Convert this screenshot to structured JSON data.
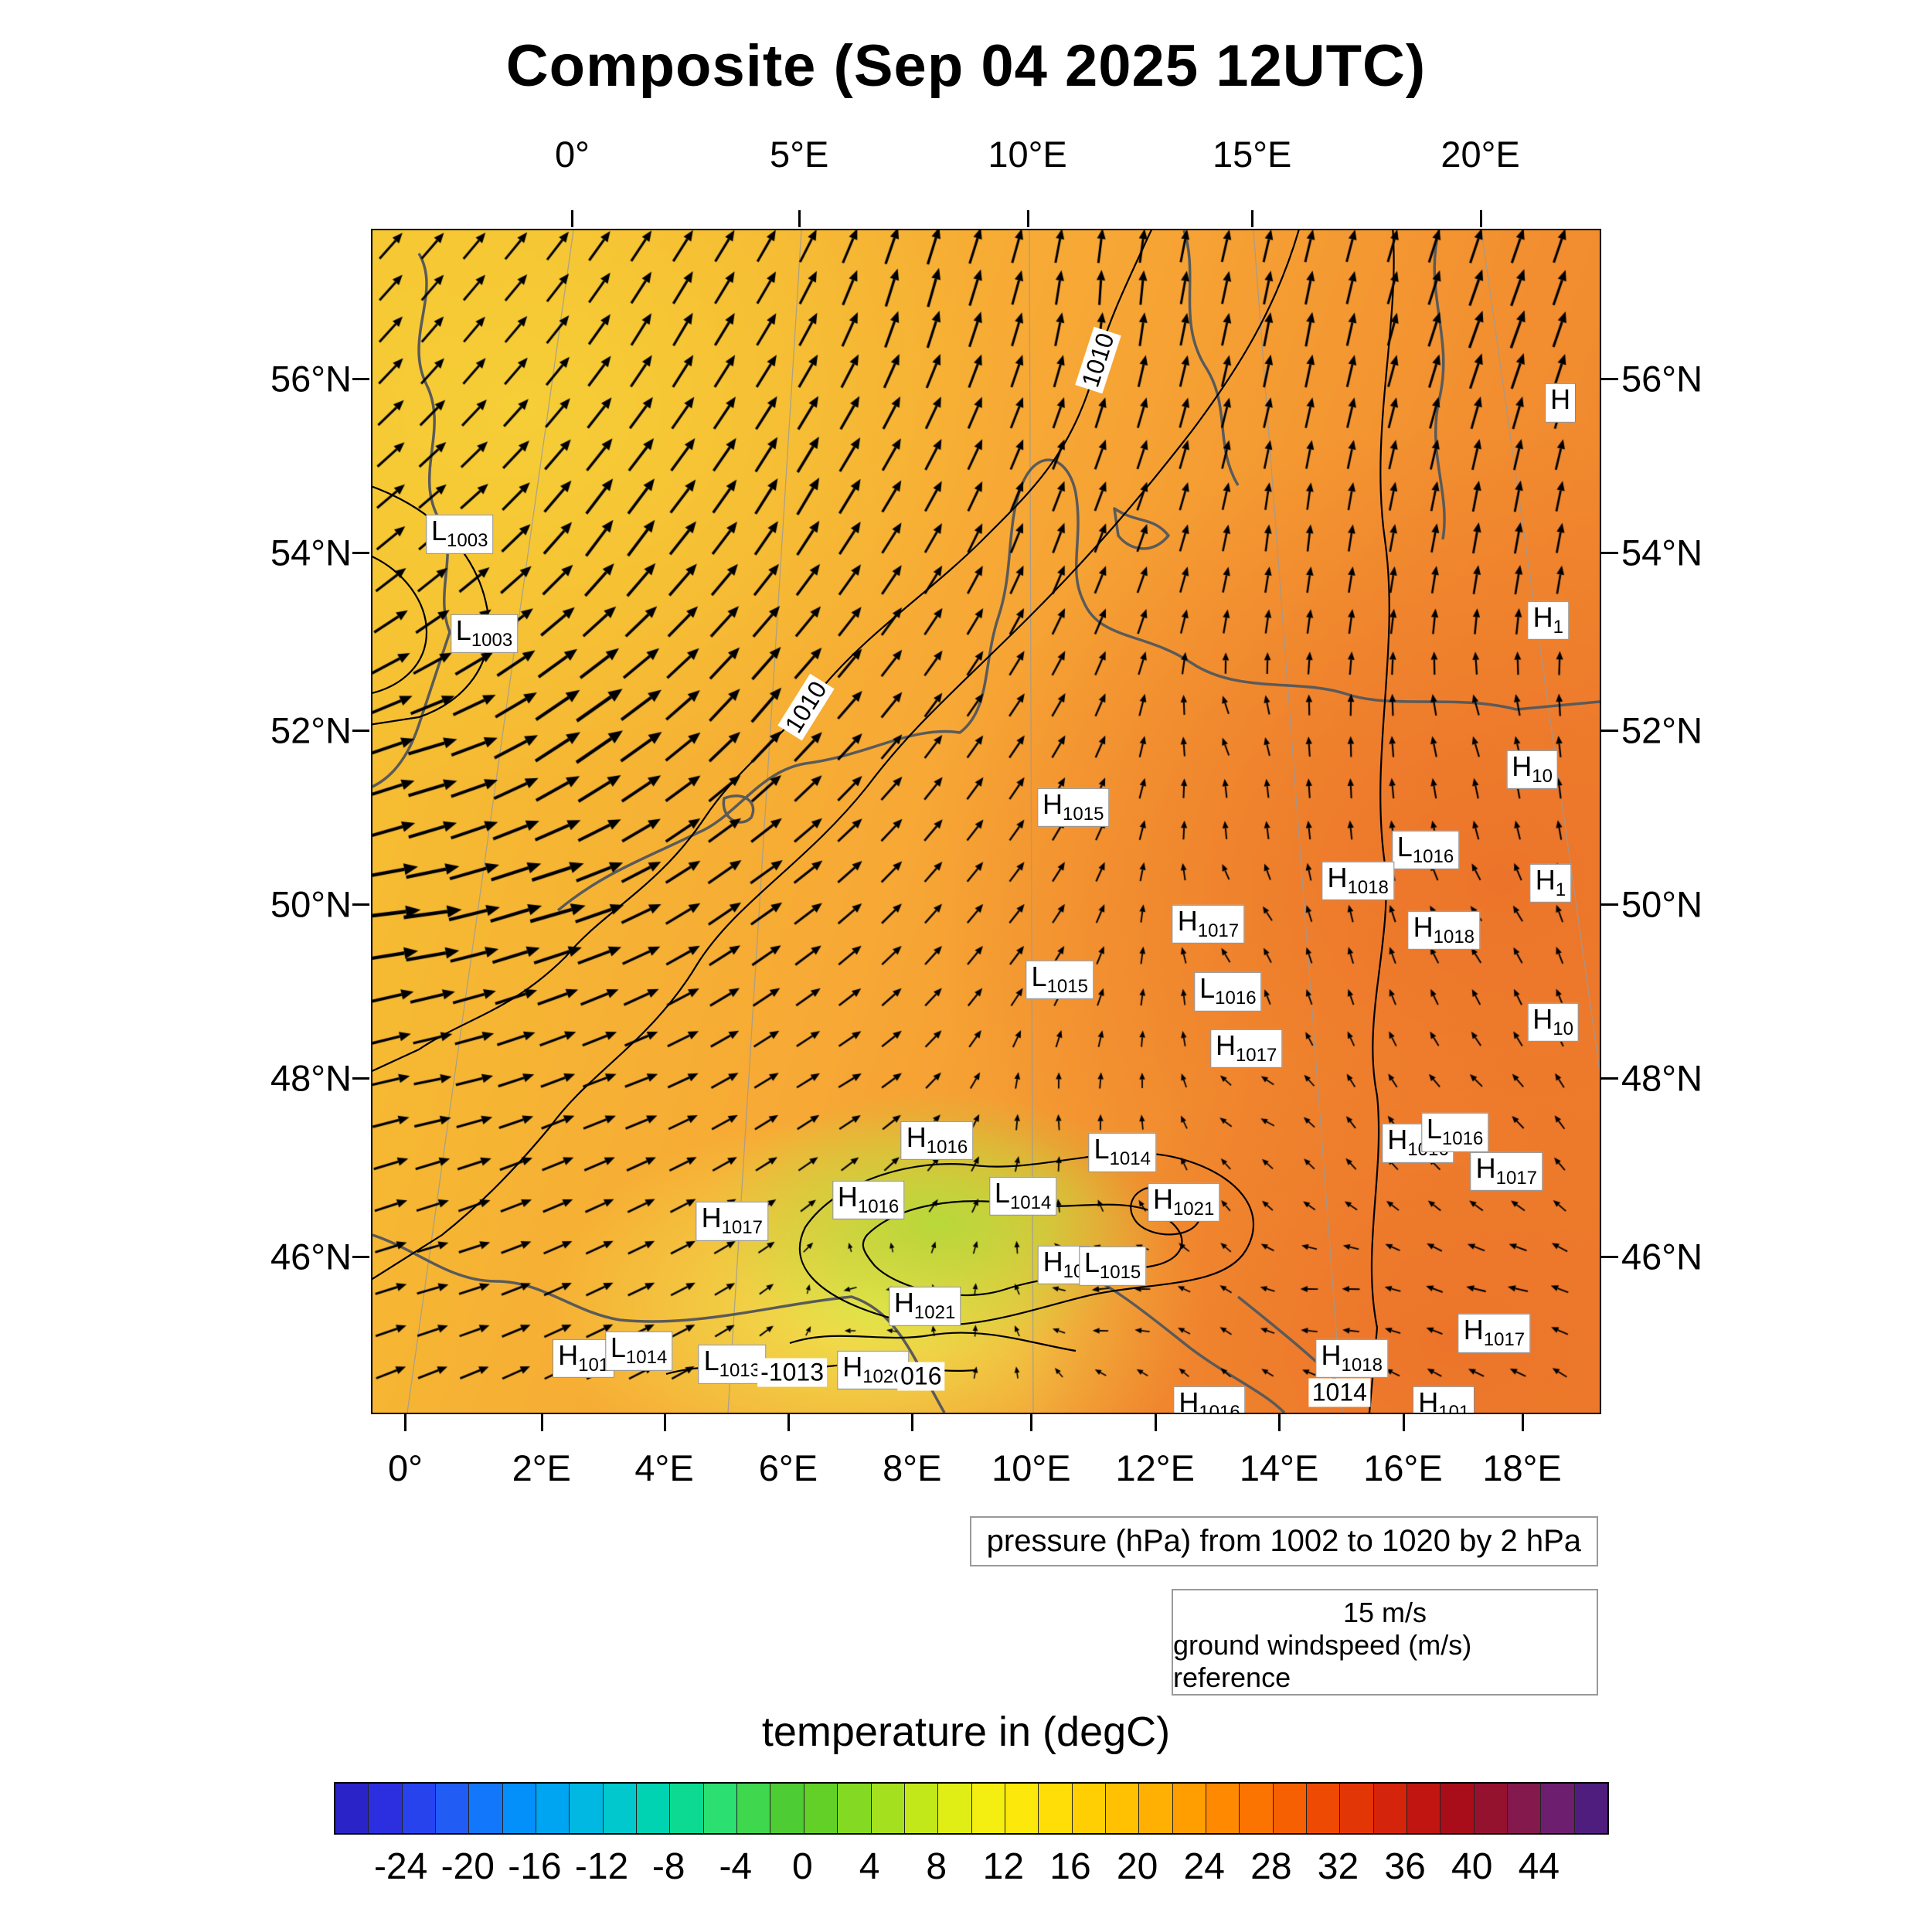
{
  "title": "Composite (Sep 04 2025 12UTC)",
  "captions": {
    "pressure": "pressure (hPa) from 1002 to 1020 by 2 hPa",
    "wind_ref_speed": "15 m/s",
    "wind_ref_label": "ground windspeed (m/s) reference",
    "colorbar_title": "temperature in (degC)"
  },
  "axes": {
    "top": [
      {
        "label": "0°",
        "x": 16.4
      },
      {
        "label": "5°E",
        "x": 34.9
      },
      {
        "label": "10°E",
        "x": 53.5
      },
      {
        "label": "15°E",
        "x": 71.8
      },
      {
        "label": "20°E",
        "x": 90.4
      }
    ],
    "bottom": [
      {
        "label": "0°",
        "x": 2.8
      },
      {
        "label": "2°E",
        "x": 13.9
      },
      {
        "label": "4°E",
        "x": 23.9
      },
      {
        "label": "6°E",
        "x": 34.0
      },
      {
        "label": "8°E",
        "x": 44.1
      },
      {
        "label": "10°E",
        "x": 53.8
      },
      {
        "label": "12°E",
        "x": 63.9
      },
      {
        "label": "14°E",
        "x": 74.0
      },
      {
        "label": "16°E",
        "x": 84.1
      },
      {
        "label": "18°E",
        "x": 93.8
      }
    ],
    "left": [
      {
        "label": "56°N",
        "y": 12.7
      },
      {
        "label": "54°N",
        "y": 27.4
      },
      {
        "label": "52°N",
        "y": 42.4
      },
      {
        "label": "50°N",
        "y": 57.1
      },
      {
        "label": "48°N",
        "y": 71.8
      },
      {
        "label": "46°N",
        "y": 86.9
      }
    ],
    "right": [
      {
        "label": "56°N",
        "y": 12.7
      },
      {
        "label": "54°N",
        "y": 27.4
      },
      {
        "label": "52°N",
        "y": 42.4
      },
      {
        "label": "50°N",
        "y": 57.1
      },
      {
        "label": "48°N",
        "y": 71.8
      },
      {
        "label": "46°N",
        "y": 86.9
      }
    ]
  },
  "colors": {
    "yellow": "#f6ce36",
    "yellow2": "#f5c431",
    "mid": "#f7a835",
    "orange": "#f28f30",
    "deep": "#ec742a",
    "deep2": "#ee7e2c",
    "green": "#b8d83a",
    "pale": "#eee84e",
    "coast": "#5a5a5a",
    "isobar": "#000000",
    "graticule": "#9a9a9a",
    "arrow": "#000000"
  },
  "colorbar": {
    "min": -28,
    "max": 48,
    "cell_step": 2,
    "tick_labels": [
      "-24",
      "-20",
      "-16",
      "-12",
      "-8",
      "-4",
      "0",
      "4",
      "8",
      "12",
      "16",
      "20",
      "24",
      "28",
      "32",
      "36",
      "40",
      "44"
    ],
    "tick_values": [
      -24,
      -20,
      -16,
      -12,
      -8,
      -4,
      0,
      4,
      8,
      12,
      16,
      20,
      24,
      28,
      32,
      36,
      40,
      44
    ],
    "colors": [
      "#2a23c8",
      "#2b2fe0",
      "#2743ee",
      "#215cf4",
      "#1277fa",
      "#0490fb",
      "#00a5f2",
      "#00b8e2",
      "#00c8cd",
      "#00d3b2",
      "#0cda92",
      "#2bdf70",
      "#3fd74d",
      "#4ecc33",
      "#63d028",
      "#84da22",
      "#a5e01e",
      "#c3e81a",
      "#e0ee16",
      "#f4ef10",
      "#fce80b",
      "#ffdd06",
      "#ffcf03",
      "#ffc102",
      "#ffb002",
      "#ff9e01",
      "#ff8a01",
      "#fb7401",
      "#f65f02",
      "#ee4a04",
      "#e33607",
      "#d4240b",
      "#c01510",
      "#a90d19",
      "#95122f",
      "#83194d",
      "#6e1e6e",
      "#4f1d7e"
    ]
  },
  "chart_data": {
    "type": "heatmap",
    "title": "Composite (Sep 04 2025 12UTC)",
    "fields": {
      "temperature": {
        "unit": "degC",
        "colorbar_min": -28,
        "colorbar_max": 48,
        "tick_step": 4
      },
      "pressure": {
        "unit": "hPa",
        "contour_min": 1002,
        "contour_max": 1020,
        "contour_step": 2
      },
      "wind": {
        "unit": "m/s",
        "reference": "15 m/s"
      }
    },
    "lon_range": [
      "0°",
      "20°E"
    ],
    "lat_range": [
      "46°N",
      "56°N"
    ],
    "pressure_labels": [
      {
        "t": "L",
        "v": "1003",
        "x": 7.1,
        "y": 25.7
      },
      {
        "t": "L",
        "v": "1003",
        "x": 9.1,
        "y": 34.1
      },
      {
        "t": "H",
        "v": "1015",
        "x": 57.1,
        "y": 48.8
      },
      {
        "t": "L",
        "v": "1016",
        "x": 85.8,
        "y": 52.4
      },
      {
        "t": "H",
        "v": "1018",
        "x": 80.3,
        "y": 55.0
      },
      {
        "t": "H",
        "v": "1017",
        "x": 68.1,
        "y": 58.7
      },
      {
        "t": "H",
        "v": "1018",
        "x": 87.3,
        "y": 59.2
      },
      {
        "t": "L",
        "v": "1015",
        "x": 56.0,
        "y": 63.4
      },
      {
        "t": "L",
        "v": "1016",
        "x": 69.7,
        "y": 64.4
      },
      {
        "t": "H",
        "v": "1017",
        "x": 71.2,
        "y": 69.2
      },
      {
        "t": "H",
        "v": "1016",
        "x": 46.0,
        "y": 77.0
      },
      {
        "t": "L",
        "v": "1014",
        "x": 61.1,
        "y": 78.0
      },
      {
        "t": "H",
        "v": "1016",
        "x": 40.4,
        "y": 82.0
      },
      {
        "t": "L",
        "v": "1014",
        "x": 53.0,
        "y": 81.7
      },
      {
        "t": "H",
        "v": "1021",
        "x": 66.1,
        "y": 82.2
      },
      {
        "t": "H",
        "v": "1017",
        "x": 29.3,
        "y": 83.8
      },
      {
        "t": "H",
        "v": "1016",
        "x": 85.2,
        "y": 77.2
      },
      {
        "t": "L",
        "v": "1016",
        "x": 88.2,
        "y": 76.3
      },
      {
        "t": "H",
        "v": "1017",
        "x": 92.4,
        "y": 79.6
      },
      {
        "t": "H",
        "v": "10",
        "x": 56.3,
        "y": 87.5
      },
      {
        "t": "L",
        "v": "1015",
        "x": 60.3,
        "y": 87.6
      },
      {
        "t": "H",
        "v": "1021",
        "x": 45.0,
        "y": 91.0
      },
      {
        "t": "H",
        "v": "101",
        "x": 17.2,
        "y": 95.4
      },
      {
        "t": "L",
        "v": "1014",
        "x": 21.7,
        "y": 94.8
      },
      {
        "t": "L",
        "v": "1013",
        "x": 29.3,
        "y": 95.9
      },
      {
        "t": "H",
        "v": "1020",
        "x": 40.8,
        "y": 96.4
      },
      {
        "t": "H",
        "v": "1018",
        "x": 79.8,
        "y": 95.4
      },
      {
        "t": "H",
        "v": "1017",
        "x": 91.4,
        "y": 93.3
      },
      {
        "t": "H",
        "v": "1016",
        "x": 68.2,
        "y": 99.4
      },
      {
        "t": "H",
        "v": "101",
        "x": 87.3,
        "y": 99.4
      },
      {
        "t": "H",
        "v": "",
        "x": 96.8,
        "y": 14.6
      },
      {
        "t": "H",
        "v": "1",
        "x": 95.8,
        "y": 33.0
      },
      {
        "t": "H",
        "v": "10",
        "x": 94.5,
        "y": 45.6
      },
      {
        "t": "H",
        "v": "1",
        "x": 96.0,
        "y": 55.2
      },
      {
        "t": "H",
        "v": "10",
        "x": 96.2,
        "y": 67.0
      }
    ],
    "contour_inline_labels": [
      {
        "text": "1010",
        "x": 59.1,
        "y": 11.0,
        "rot": -72
      },
      {
        "text": "1010",
        "x": 35.3,
        "y": 40.3,
        "rot": -58
      },
      {
        "text": "-1013",
        "x": 34.2,
        "y": 96.6,
        "rot": 0
      },
      {
        "text": "016",
        "x": 44.7,
        "y": 96.9,
        "rot": 0
      },
      {
        "text": "1014",
        "x": 78.8,
        "y": 98.3,
        "rot": 0
      }
    ],
    "wind_field_control_points": [
      [
        8,
        8,
        50,
        0.45
      ],
      [
        25,
        8,
        60,
        0.55
      ],
      [
        45,
        5,
        75,
        0.6
      ],
      [
        60,
        5,
        88,
        0.5
      ],
      [
        75,
        8,
        80,
        0.5
      ],
      [
        92,
        8,
        70,
        0.6
      ],
      [
        5,
        25,
        40,
        0.5
      ],
      [
        20,
        25,
        55,
        0.7
      ],
      [
        35,
        22,
        60,
        0.65
      ],
      [
        55,
        25,
        70,
        0.45
      ],
      [
        75,
        25,
        85,
        0.35
      ],
      [
        92,
        25,
        80,
        0.45
      ],
      [
        5,
        45,
        15,
        0.8
      ],
      [
        18,
        42,
        35,
        0.95
      ],
      [
        32,
        40,
        50,
        0.7
      ],
      [
        50,
        42,
        55,
        0.35
      ],
      [
        70,
        42,
        120,
        0.2
      ],
      [
        90,
        42,
        110,
        0.25
      ],
      [
        3,
        58,
        5,
        1.0
      ],
      [
        15,
        57,
        15,
        0.95
      ],
      [
        30,
        55,
        35,
        0.6
      ],
      [
        50,
        58,
        50,
        0.3
      ],
      [
        70,
        58,
        140,
        0.18
      ],
      [
        90,
        58,
        130,
        0.2
      ],
      [
        5,
        72,
        10,
        0.55
      ],
      [
        20,
        72,
        20,
        0.5
      ],
      [
        38,
        72,
        30,
        0.35
      ],
      [
        55,
        74,
        100,
        0.15
      ],
      [
        72,
        74,
        160,
        0.15
      ],
      [
        90,
        74,
        140,
        0.18
      ],
      [
        5,
        88,
        15,
        0.45
      ],
      [
        20,
        90,
        25,
        0.4
      ],
      [
        40,
        90,
        200,
        0.15
      ],
      [
        60,
        90,
        190,
        0.2
      ],
      [
        78,
        90,
        185,
        0.2
      ],
      [
        92,
        90,
        170,
        0.25
      ]
    ]
  }
}
